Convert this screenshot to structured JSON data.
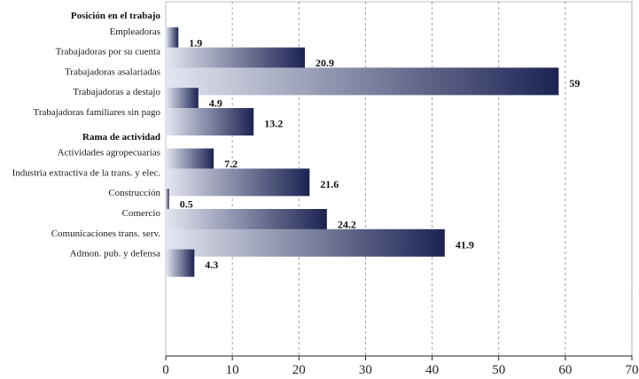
{
  "chart_data": {
    "type": "bar",
    "orientation": "horizontal",
    "title": "",
    "xlabel": "",
    "ylabel": "",
    "xlim": [
      0,
      70
    ],
    "xticks": [
      0,
      10,
      20,
      30,
      40,
      50,
      60,
      70
    ],
    "grid": "vertical dashed",
    "groups": [
      {
        "label": "Posición en el trabajo",
        "categories": [
          "Empleadoras",
          "Trabajadoras por su cuenta",
          "Trabajadoras asalariadas",
          "Trabajadoras a destajo",
          "Trabajadoras familiares sin pago"
        ],
        "values": [
          1.9,
          20.9,
          59,
          4.9,
          13.2
        ],
        "value_labels": [
          "1.9",
          "20.9",
          "59",
          "4.9",
          "13.2"
        ]
      },
      {
        "label": "Rama de actividad",
        "categories": [
          "Actividades agropecuarias",
          "Industria extractiva de la trans. y elec.",
          "Construcción",
          "Comercio",
          "Comunicaciones trans. serv.",
          "Admon. pub. y defensa"
        ],
        "values": [
          7.2,
          21.6,
          0.5,
          24.2,
          41.9,
          4.3
        ],
        "value_labels": [
          "7.2",
          "21.6",
          "0.5",
          "24.2",
          "41.9",
          "4.3"
        ]
      }
    ],
    "colors": {
      "bar_light": "#e4e7f2",
      "bar_dark": "#1c2352",
      "grid": "#9aa0b5",
      "axis": "#222222"
    }
  }
}
